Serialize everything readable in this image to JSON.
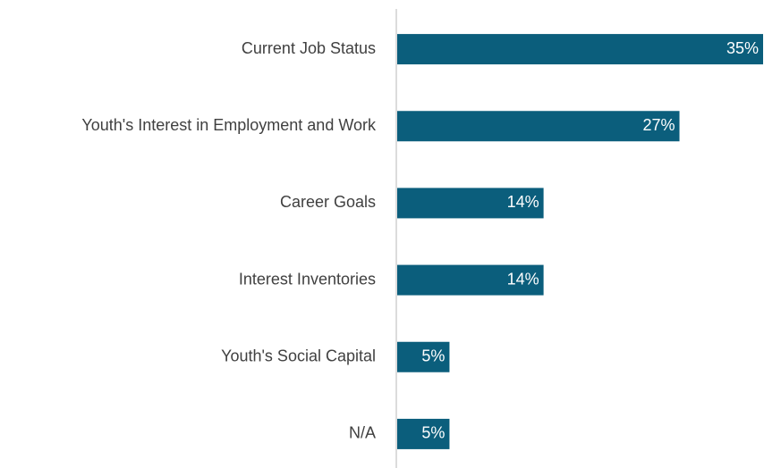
{
  "chart_data": {
    "type": "bar",
    "orientation": "horizontal",
    "categories": [
      "Current Job Status",
      "Youth's Interest in Employment and Work",
      "Career Goals",
      "Interest Inventories",
      "Youth's Social Capital",
      "N/A"
    ],
    "values": [
      35,
      27,
      14,
      14,
      5,
      5
    ],
    "value_labels": [
      "35%",
      "27%",
      "14%",
      "14%",
      "5%",
      "5%"
    ],
    "color": "#0b5e7c"
  }
}
